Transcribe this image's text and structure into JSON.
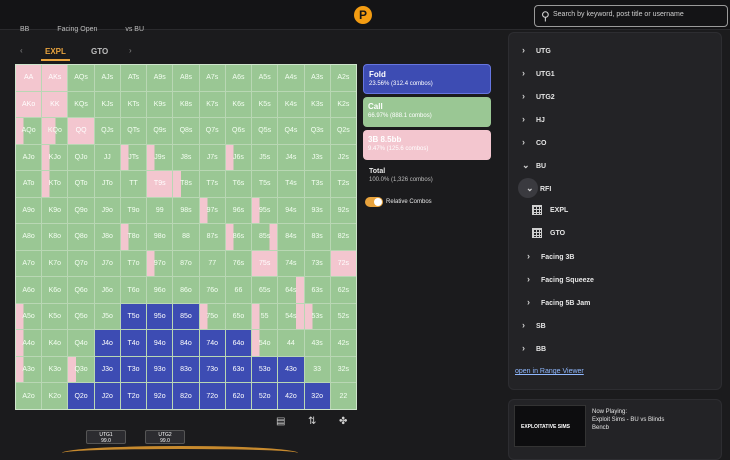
{
  "topbar": {
    "logo_letter": "P",
    "search_placeholder": "Search by keyword, post title or username"
  },
  "breadcrumb": [
    "BB",
    "Facing Open",
    "vs BU"
  ],
  "tabs": [
    {
      "label": "EXPL",
      "active": true
    },
    {
      "label": "GTO",
      "active": false
    }
  ],
  "colors": {
    "fold": "#3d4cb3",
    "call": "#9ac794",
    "raise": "#f3c6cf",
    "accent": "#e8a33d"
  },
  "grid": [
    [
      "AA",
      "AKs",
      "AQs",
      "AJs",
      "ATs",
      "A9s",
      "A8s",
      "A7s",
      "A6s",
      "A5s",
      "A4s",
      "A3s",
      "A2s"
    ],
    [
      "AKo",
      "KK",
      "KQs",
      "KJs",
      "KTs",
      "K9s",
      "K8s",
      "K7s",
      "K6s",
      "K5s",
      "K4s",
      "K3s",
      "K2s"
    ],
    [
      "AQo",
      "KQo",
      "QQ",
      "QJs",
      "QTs",
      "Q9s",
      "Q8s",
      "Q7s",
      "Q6s",
      "Q5s",
      "Q4s",
      "Q3s",
      "Q2s"
    ],
    [
      "AJo",
      "KJo",
      "QJo",
      "JJ",
      "JTs",
      "J9s",
      "J8s",
      "J7s",
      "J6s",
      "J5s",
      "J4s",
      "J3s",
      "J2s"
    ],
    [
      "ATo",
      "KTo",
      "QTo",
      "JTo",
      "TT",
      "T9s",
      "T8s",
      "T7s",
      "T6s",
      "T5s",
      "T4s",
      "T3s",
      "T2s"
    ],
    [
      "A9o",
      "K9o",
      "Q9o",
      "J9o",
      "T9o",
      "99",
      "98s",
      "97s",
      "96s",
      "95s",
      "94s",
      "93s",
      "92s"
    ],
    [
      "A8o",
      "K8o",
      "Q8o",
      "J8o",
      "T8o",
      "98o",
      "88",
      "87s",
      "86s",
      "85s",
      "84s",
      "83s",
      "82s"
    ],
    [
      "A7o",
      "K7o",
      "Q7o",
      "J7o",
      "T7o",
      "97o",
      "87o",
      "77",
      "76s",
      "75s",
      "74s",
      "73s",
      "72s"
    ],
    [
      "A6o",
      "K6o",
      "Q6o",
      "J6o",
      "T6o",
      "96o",
      "86o",
      "76o",
      "66",
      "65s",
      "64s",
      "63s",
      "62s"
    ],
    [
      "A5o",
      "K5o",
      "Q5o",
      "J5o",
      "T5o",
      "95o",
      "85o",
      "75o",
      "65o",
      "55",
      "54s",
      "53s",
      "52s"
    ],
    [
      "A4o",
      "K4o",
      "Q4o",
      "J4o",
      "T4o",
      "94o",
      "84o",
      "74o",
      "64o",
      "54o",
      "44",
      "43s",
      "42s"
    ],
    [
      "A3o",
      "K3o",
      "Q3o",
      "J3o",
      "T3o",
      "93o",
      "83o",
      "73o",
      "63o",
      "53o",
      "43o",
      "33",
      "32s"
    ],
    [
      "A2o",
      "K2o",
      "Q2o",
      "J2o",
      "T2o",
      "92o",
      "82o",
      "72o",
      "62o",
      "52o",
      "42o",
      "32o",
      "22"
    ]
  ],
  "grid_actions": [
    [
      "rais",
      "rais",
      "call",
      "call",
      "call",
      "call",
      "call",
      "call",
      "call",
      "call",
      "call",
      "call",
      "call"
    ],
    [
      "rais",
      "rais",
      "call",
      "call",
      "call",
      "call",
      "call",
      "call",
      "call",
      "call",
      "call",
      "call",
      "call"
    ],
    [
      "mixbar",
      "mixhalf",
      "rais",
      "call",
      "call",
      "call",
      "call",
      "call",
      "call",
      "call",
      "call",
      "call",
      "call"
    ],
    [
      "call",
      "mixbar",
      "call",
      "call",
      "mixbar",
      "mixbar",
      "call",
      "call",
      "mixbar",
      "call",
      "call",
      "call",
      "call"
    ],
    [
      "call",
      "mixbar",
      "call",
      "call",
      "call",
      "rais",
      "mixbar",
      "call",
      "call",
      "call",
      "call",
      "call",
      "call"
    ],
    [
      "call",
      "call",
      "call",
      "call",
      "call",
      "call",
      "call",
      "mixbar",
      "call",
      "mixbar",
      "call",
      "call",
      "call"
    ],
    [
      "call",
      "call",
      "call",
      "call",
      "mixbar",
      "call",
      "call",
      "call",
      "mixbar",
      "mixpink",
      "call",
      "call",
      "call"
    ],
    [
      "call",
      "call",
      "call",
      "call",
      "call",
      "mixbar",
      "call",
      "call",
      "call",
      "rais",
      "call",
      "call",
      "rais"
    ],
    [
      "call",
      "call",
      "call",
      "call",
      "call",
      "call",
      "call",
      "call",
      "call",
      "call",
      "mixpink",
      "call",
      "call"
    ],
    [
      "mixbar",
      "call",
      "call",
      "call",
      "fold",
      "fold",
      "fold",
      "mixbar",
      "call",
      "mixbar",
      "mixpink",
      "mixbar",
      "call"
    ],
    [
      "mixbar",
      "call",
      "call",
      "fold",
      "fold",
      "fold",
      "fold",
      "fold",
      "fold",
      "mixbar",
      "call",
      "call",
      "call"
    ],
    [
      "mixbar",
      "call",
      "mixbar",
      "fold",
      "fold",
      "fold",
      "fold",
      "fold",
      "fold",
      "fold",
      "fold",
      "call",
      "call"
    ],
    [
      "call",
      "call",
      "fold",
      "fold",
      "fold",
      "fold",
      "fold",
      "fold",
      "fold",
      "fold",
      "fold",
      "fold",
      "call"
    ]
  ],
  "legend": {
    "fold": {
      "title": "Fold",
      "sub": "23.56% (312.4 combos)"
    },
    "call": {
      "title": "Call",
      "sub": "66.97% (888.1 combos)"
    },
    "raise": {
      "title": "3B 8.5bb",
      "sub": "9.47% (125.6 combos)"
    },
    "total": {
      "title": "Total",
      "sub": "100.0% (1,326 combos)"
    },
    "toggle_label": "Relative Combos"
  },
  "seats": [
    {
      "name": "UTG1",
      "stack": "99.0"
    },
    {
      "name": "UTG2",
      "stack": "99.0"
    }
  ],
  "sidebar": {
    "positions": [
      "UTG",
      "UTG1",
      "UTG2",
      "HJ",
      "CO",
      "BU"
    ],
    "bu_children": {
      "rfi": "RFI",
      "rfi_items": [
        "EXPL",
        "GTO"
      ],
      "others": [
        "Facing 3B",
        "Facing Squeeze",
        "Facing 5B Jam"
      ]
    },
    "after": [
      "SB",
      "BB"
    ],
    "link": "open in Range Viewer"
  },
  "now_playing": {
    "label": "Now Playing:",
    "title": "Exploit Sims - BU vs Blinds",
    "author": "Bencb",
    "thumb_text": "EXPLOITATIVE SIMS"
  }
}
